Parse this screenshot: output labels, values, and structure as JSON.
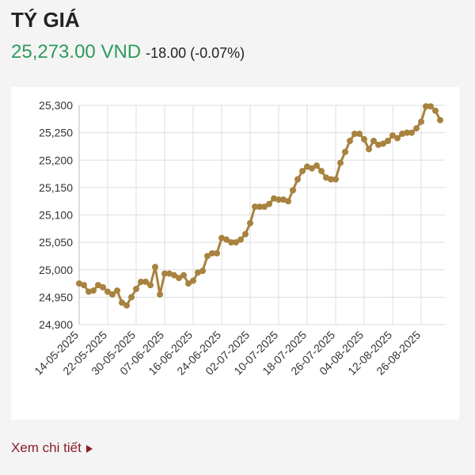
{
  "header": {
    "title": "TÝ GIÁ",
    "price": "25,273.00 VND",
    "change": "-18.00 (-0.07%)"
  },
  "chart_data": {
    "type": "line",
    "color": "#a8823f",
    "grid": true,
    "categories": [
      "14-05-2025",
      null,
      null,
      null,
      null,
      null,
      "22-05-2025",
      null,
      null,
      null,
      null,
      null,
      "30-05-2025",
      null,
      null,
      null,
      null,
      null,
      "07-06-2025",
      null,
      null,
      null,
      null,
      null,
      "16-06-2025",
      null,
      null,
      null,
      null,
      null,
      "24-06-2025",
      null,
      null,
      null,
      null,
      null,
      "02-07-2025",
      null,
      null,
      null,
      null,
      null,
      "10-07-2025",
      null,
      null,
      null,
      null,
      null,
      "18-07-2025",
      null,
      null,
      null,
      null,
      null,
      "26-07-2025",
      null,
      null,
      null,
      null,
      null,
      "04-08-2025",
      null,
      null,
      null,
      null,
      null,
      "12-08-2025",
      null,
      null,
      null,
      null,
      null,
      "26-08-2025",
      null,
      null,
      null,
      null
    ],
    "values": [
      24975,
      24972,
      24960,
      24962,
      24972,
      24968,
      24960,
      24955,
      24962,
      24940,
      24935,
      24950,
      24965,
      24978,
      24978,
      24972,
      25005,
      24955,
      24993,
      24993,
      24990,
      24985,
      24990,
      24975,
      24980,
      24995,
      24998,
      25025,
      25030,
      25030,
      25058,
      25055,
      25050,
      25050,
      25055,
      25065,
      25085,
      25115,
      25115,
      25115,
      25120,
      25130,
      25128,
      25128,
      25125,
      25145,
      25165,
      25180,
      25188,
      25185,
      25190,
      25180,
      25168,
      25165,
      25165,
      25195,
      25215,
      25235,
      25248,
      25248,
      25238,
      25220,
      25235,
      25228,
      25230,
      25235,
      25245,
      25240,
      25248,
      25250,
      25250,
      25258,
      25270,
      25298,
      25298,
      25290,
      25273
    ],
    "ylim": [
      24900,
      25300
    ],
    "yticks": [
      {
        "value": 24900,
        "label": "24,900"
      },
      {
        "value": 24950,
        "label": "24,950"
      },
      {
        "value": 25000,
        "label": "25,000"
      },
      {
        "value": 25050,
        "label": "25,050"
      },
      {
        "value": 25100,
        "label": "25,100"
      },
      {
        "value": 25150,
        "label": "25,150"
      },
      {
        "value": 25200,
        "label": "25,200"
      },
      {
        "value": 25250,
        "label": "25,250"
      },
      {
        "value": 25300,
        "label": "25,300"
      }
    ]
  },
  "footer": {
    "link": "Xem chi tiết"
  }
}
